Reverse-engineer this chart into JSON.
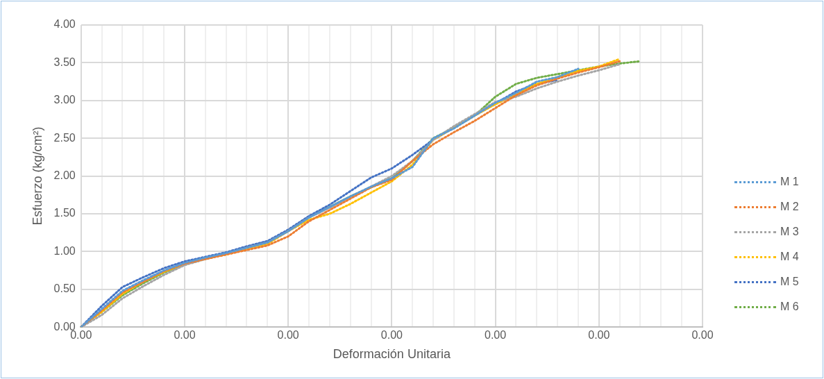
{
  "chart_data": {
    "type": "line",
    "xlabel": "Deformación Unitaria",
    "ylabel": "Esfuerzo (kg/cm²)",
    "categories": [
      "0.00",
      null,
      null,
      null,
      null,
      "0.00",
      null,
      null,
      null,
      null,
      "0.00",
      null,
      null,
      null,
      null,
      "0.00",
      null,
      null,
      null,
      null,
      "0.00",
      null,
      null,
      null,
      null,
      "0.00",
      null,
      null,
      null,
      null,
      "0.00"
    ],
    "ylim": [
      0,
      4
    ],
    "yticks": [
      {
        "value": 0,
        "label": "0.00"
      },
      {
        "value": 0.5,
        "label": "0.50"
      },
      {
        "value": 1,
        "label": "1.00"
      },
      {
        "value": 1.5,
        "label": "1.50"
      },
      {
        "value": 2,
        "label": "2.00"
      },
      {
        "value": 2.5,
        "label": "2.50"
      },
      {
        "value": 3,
        "label": "3.00"
      },
      {
        "value": 3.5,
        "label": "3.50"
      },
      {
        "value": 4,
        "label": "4.00"
      }
    ],
    "grid": true,
    "legend": "right",
    "marker": "none",
    "line_style": "dotted",
    "series": [
      {
        "name": "M 1",
        "color": "#5b9bd5",
        "values": [
          0,
          0.24,
          0.48,
          0.62,
          0.75,
          0.85,
          0.92,
          0.98,
          1.05,
          1.12,
          1.27,
          1.45,
          1.59,
          1.73,
          1.86,
          1.97,
          2.12,
          2.5,
          2.63,
          2.8,
          2.97,
          3.1,
          3.25,
          3.31,
          3.42,
          null,
          null,
          null,
          null,
          null,
          null
        ]
      },
      {
        "name": "M 2",
        "color": "#ed7d31",
        "values": [
          0,
          0.22,
          0.46,
          0.6,
          0.74,
          0.84,
          0.9,
          0.96,
          1.02,
          1.08,
          1.2,
          1.4,
          1.55,
          1.7,
          1.85,
          1.95,
          2.2,
          2.42,
          2.58,
          2.73,
          2.9,
          3.07,
          3.2,
          3.29,
          3.37,
          3.44,
          3.52,
          null,
          null,
          null,
          null
        ]
      },
      {
        "name": "M 3",
        "color": "#a5a5a5",
        "values": [
          0,
          0.16,
          0.38,
          0.54,
          0.69,
          0.82,
          0.9,
          0.97,
          1.05,
          1.12,
          1.27,
          1.45,
          1.58,
          1.72,
          1.86,
          2,
          2.2,
          2.48,
          2.66,
          2.82,
          2.98,
          3.05,
          3.16,
          3.25,
          3.33,
          3.4,
          3.48,
          null,
          null,
          null,
          null
        ]
      },
      {
        "name": "M 4",
        "color": "#ffc000",
        "values": [
          0,
          0.2,
          0.44,
          0.6,
          0.73,
          0.84,
          0.91,
          0.96,
          1.03,
          1.1,
          1.27,
          1.42,
          1.5,
          1.63,
          1.78,
          1.93,
          2.15,
          2.48,
          2.64,
          2.8,
          2.95,
          3.08,
          3.22,
          3.31,
          3.39,
          3.45,
          3.55,
          null,
          null,
          null,
          null
        ]
      },
      {
        "name": "M 5",
        "color": "#4472c4",
        "values": [
          0,
          0.28,
          0.53,
          0.66,
          0.78,
          0.87,
          0.93,
          0.99,
          1.07,
          1.14,
          1.29,
          1.47,
          1.62,
          1.8,
          1.98,
          2.1,
          2.28,
          2.48,
          2.64,
          2.8,
          2.96,
          3.12,
          3.22,
          3.27,
          null,
          null,
          null,
          null,
          null,
          null,
          null
        ]
      },
      {
        "name": "M 6",
        "color": "#70ad47",
        "values": [
          0,
          0.2,
          0.42,
          0.58,
          0.72,
          0.83,
          0.9,
          0.97,
          1.05,
          1.12,
          1.27,
          1.45,
          1.59,
          1.73,
          1.85,
          1.97,
          2.2,
          2.5,
          2.64,
          2.8,
          3.05,
          3.22,
          3.3,
          3.35,
          3.4,
          3.45,
          3.49,
          3.52,
          null,
          null,
          null
        ]
      }
    ]
  }
}
